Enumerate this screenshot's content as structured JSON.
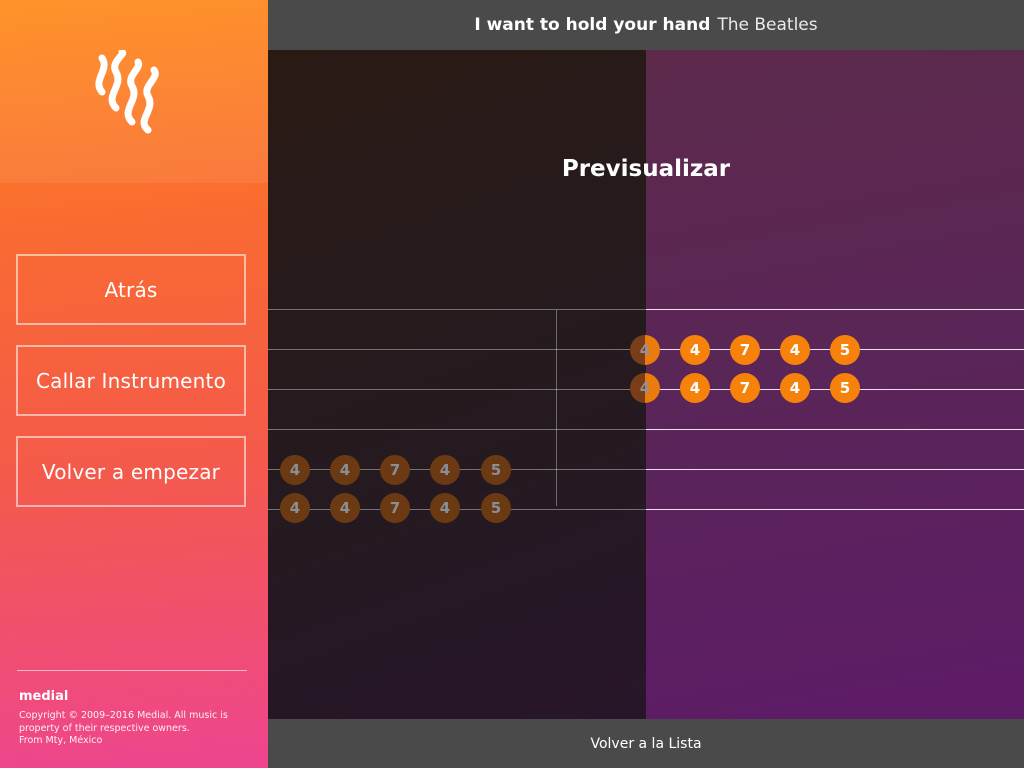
{
  "header": {
    "song_title": "I want to hold your hand",
    "artist": "The Beatles"
  },
  "sidebar": {
    "buttons": [
      {
        "label": "Atrás"
      },
      {
        "label": "Callar Instrumento"
      },
      {
        "label": "Volver a empezar"
      }
    ],
    "brand": "medial",
    "copyright": [
      "Copyright © 2009–2016 Medial. All music is",
      "property of their respective owners.",
      "From Mty, México"
    ]
  },
  "main": {
    "title": "Previsualizar",
    "upcoming_notes": {
      "row1": [
        "4",
        "4",
        "7",
        "4",
        "5"
      ],
      "row2": [
        "4",
        "4",
        "7",
        "4",
        "5"
      ]
    },
    "passed_notes": {
      "row1": [
        "4",
        "4",
        "7",
        "4",
        "5"
      ],
      "row2": [
        "4",
        "4",
        "7",
        "4",
        "5"
      ]
    }
  },
  "footer": {
    "back_to_list": "Volver a la Lista"
  },
  "colors": {
    "accent": "#f6820c",
    "bar": "#4a4a4a",
    "sidebar_top": "#ff8a18",
    "sidebar_bottom": "#ee4590"
  }
}
